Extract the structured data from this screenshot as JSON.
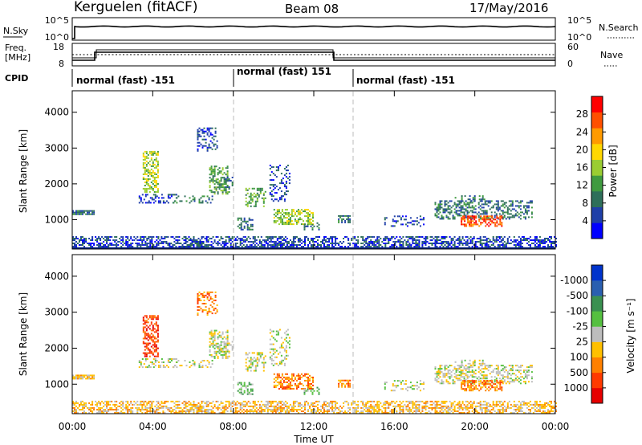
{
  "header": {
    "station": "Kerguelen (fitACF)",
    "beam": "Beam 08",
    "date": "17/May/2016"
  },
  "top_panels": {
    "nsky_label": "N.Sky",
    "nsky_ticks": [
      "10^5",
      "10^0"
    ],
    "nsearch_label": "N.Search",
    "nsearch_ticks": [
      "10^5",
      "10^0"
    ],
    "freq_label": "Freq.",
    "freq_unit": "[MHz]",
    "freq_ticks": [
      "18",
      "8"
    ],
    "nave_label": "Nave",
    "nave_ticks": [
      "60",
      "0"
    ],
    "cpid_label": "CPID",
    "cpid_segments": [
      {
        "label": "normal (fast) -151"
      },
      {
        "label": "normal (fast) 151"
      },
      {
        "label": "normal (fast) -151"
      }
    ]
  },
  "colors": {
    "power": [
      "#0000ff",
      "#1f3fa8",
      "#2e6f5a",
      "#3f9a3f",
      "#9acd32",
      "#ffd700",
      "#ff9a00",
      "#ff5000",
      "#ff0000"
    ],
    "velocity": [
      "#0033cc",
      "#2a5fb0",
      "#3a9050",
      "#55c040",
      "#bdbdbd",
      "#ffc000",
      "#ff8000",
      "#ff3a00",
      "#e60000"
    ]
  },
  "chart_data": [
    {
      "type": "heatmap",
      "name": "power",
      "ylabel": "Slant Range [km]",
      "yticks": [
        "1000",
        "2000",
        "3000",
        "4000"
      ],
      "ylim": [
        180,
        4600
      ],
      "xlim": [
        0,
        24
      ],
      "colorbar_label": "Power [dB]",
      "colorbar_ticks": [
        "4",
        "8",
        "12",
        "16",
        "20",
        "24",
        "28"
      ],
      "colorbar_range": [
        0,
        30
      ]
    },
    {
      "type": "heatmap",
      "name": "velocity",
      "ylabel": "Slant Range [km]",
      "yticks": [
        "1000",
        "2000",
        "3000",
        "4000"
      ],
      "ylim": [
        180,
        4600
      ],
      "xlim": [
        0,
        24
      ],
      "colorbar_label": "Velocity [m s⁻¹]",
      "colorbar_ticks": [
        "-1000",
        "-500",
        "-100",
        "-25",
        "25",
        "100",
        "500",
        "1000"
      ],
      "x_label": "Time UT",
      "xticks": [
        "00:00",
        "04:00",
        "08:00",
        "12:00",
        "16:00",
        "20:00",
        "00:00"
      ]
    }
  ]
}
